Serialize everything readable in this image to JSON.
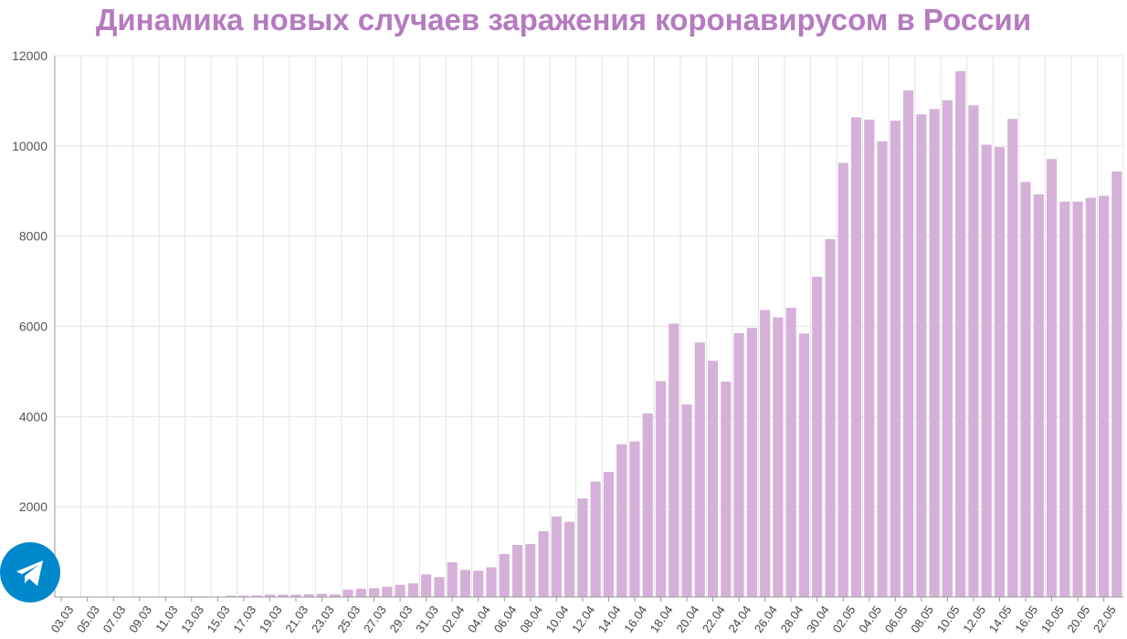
{
  "colors": {
    "bar": "#d5b1d9",
    "title": "#b57ac0",
    "grid": "#e4e4e4",
    "axis": "#999999",
    "telegram": "#0088cc"
  },
  "telegram_button": {
    "icon": "telegram-paper-plane-icon"
  },
  "chart_data": {
    "type": "bar",
    "title": "Динамика новых случаев заражения коронавирусом в России",
    "xlabel": "",
    "ylabel": "",
    "ylim": [
      0,
      12000
    ],
    "yticks": [
      2000,
      4000,
      6000,
      8000,
      10000,
      12000
    ],
    "grid": true,
    "categories": [
      "03.03",
      "04.03",
      "05.03",
      "06.03",
      "07.03",
      "08.03",
      "09.03",
      "10.03",
      "11.03",
      "12.03",
      "13.03",
      "14.03",
      "15.03",
      "16.03",
      "17.03",
      "18.03",
      "19.03",
      "20.03",
      "21.03",
      "22.03",
      "23.03",
      "24.03",
      "25.03",
      "26.03",
      "27.03",
      "28.03",
      "29.03",
      "30.03",
      "31.03",
      "01.04",
      "02.04",
      "03.04",
      "04.04",
      "05.04",
      "06.04",
      "07.04",
      "08.04",
      "09.04",
      "10.04",
      "11.04",
      "12.04",
      "13.04",
      "14.04",
      "15.04",
      "16.04",
      "17.04",
      "18.04",
      "19.04",
      "20.04",
      "21.04",
      "22.04",
      "23.04",
      "24.04",
      "25.04",
      "26.04",
      "27.04",
      "28.04",
      "29.04",
      "30.04",
      "01.05",
      "02.05",
      "03.05",
      "04.05",
      "05.05",
      "06.05",
      "07.05",
      "08.05",
      "09.05",
      "10.05",
      "11.05",
      "12.05",
      "13.05",
      "14.05",
      "15.05",
      "16.05",
      "17.05",
      "18.05",
      "19.05",
      "20.05",
      "21.05",
      "22.05",
      "23.05"
    ],
    "xtick_labels": [
      "03.03",
      "05.03",
      "07.03",
      "09.03",
      "11.03",
      "13.03",
      "15.03",
      "17.03",
      "19.03",
      "21.03",
      "23.03",
      "25.03",
      "27.03",
      "29.03",
      "31.03",
      "02.04",
      "04.04",
      "06.04",
      "08.04",
      "10.04",
      "12.04",
      "14.04",
      "16.04",
      "18.04",
      "20.04",
      "22.04",
      "24.04",
      "26.04",
      "28.04",
      "30.04",
      "02.05",
      "04.05",
      "06.05",
      "08.05",
      "10.05",
      "12.05",
      "14.05",
      "16.05",
      "18.05",
      "20.05",
      "22.05"
    ],
    "values": [
      1,
      0,
      0,
      0,
      3,
      0,
      3,
      3,
      8,
      6,
      15,
      14,
      4,
      29,
      30,
      33,
      53,
      52,
      53,
      62,
      71,
      57,
      163,
      182,
      196,
      228,
      270,
      302,
      501,
      440,
      771,
      601,
      582,
      658,
      954,
      1154,
      1175,
      1459,
      1786,
      1667,
      2186,
      2558,
      2774,
      3388,
      3448,
      4070,
      4785,
      6060,
      4268,
      5642,
      5236,
      4774,
      5849,
      5966,
      6361,
      6198,
      6411,
      5841,
      7099,
      7933,
      9623,
      10633,
      10581,
      10102,
      10559,
      11231,
      10699,
      10817,
      11012,
      11656,
      10899,
      10028,
      9974,
      10598,
      9200,
      8926,
      9709,
      8764,
      8764,
      8849,
      8894,
      9434
    ],
    "series": [
      {
        "name": "",
        "values": "see values"
      }
    ]
  }
}
